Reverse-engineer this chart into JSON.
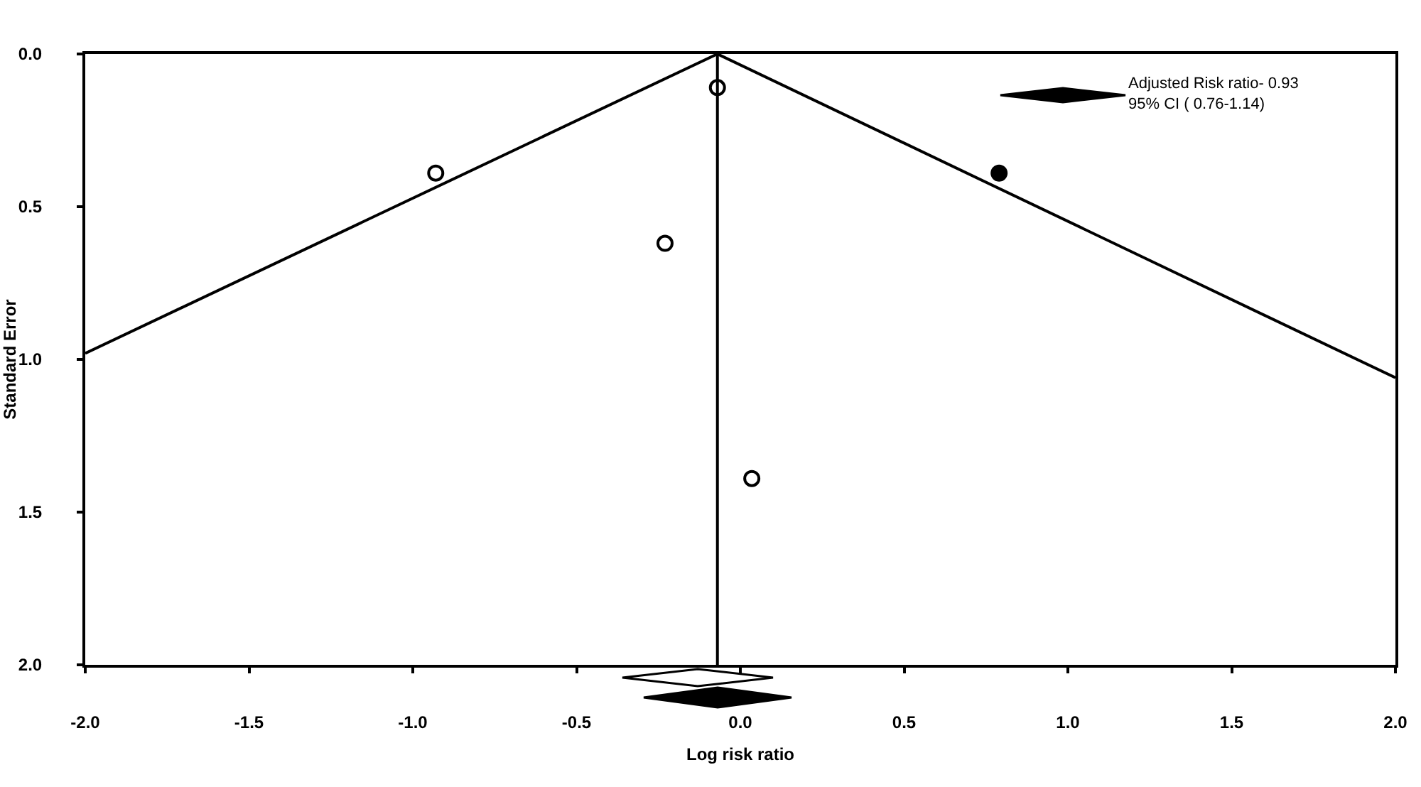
{
  "chart_data": {
    "type": "scatter",
    "xlabel": "Log risk ratio",
    "ylabel": "Standard Error",
    "xlim": [
      -2,
      2
    ],
    "xticks": [
      {
        "value": -2,
        "label": "-2.0"
      },
      {
        "value": -1.5,
        "label": "-1.5"
      },
      {
        "value": -1,
        "label": "-1.0"
      },
      {
        "value": -0.5,
        "label": "-0.5"
      },
      {
        "value": 0,
        "label": "0.0"
      },
      {
        "value": 0.5,
        "label": "0.5"
      },
      {
        "value": 1,
        "label": "1.0"
      },
      {
        "value": 1.5,
        "label": "1.5"
      },
      {
        "value": 2,
        "label": "2.0"
      }
    ],
    "ylim": [
      2,
      0
    ],
    "yticks": [
      {
        "value": 0,
        "label": "0.0"
      },
      {
        "value": 0.5,
        "label": "0.5"
      },
      {
        "value": 1,
        "label": "1.0"
      },
      {
        "value": 1.5,
        "label": "1.5"
      },
      {
        "value": 2,
        "label": "2.0"
      }
    ],
    "grid": false,
    "marker": "circle",
    "series": [
      {
        "type": "line",
        "color": "#000000",
        "x": [
          -2,
          -0.07,
          2
        ],
        "values": [
          0.98,
          0,
          1.06
        ],
        "marker": "none"
      },
      {
        "color": "#ffffff",
        "x": [
          -0.93,
          -0.07,
          -0.23,
          0.035
        ],
        "values": [
          0.39,
          0.11,
          0.62,
          1.39
        ]
      },
      {
        "color": "#000000",
        "x": [
          0.79
        ],
        "values": [
          0.39
        ]
      }
    ],
    "ref_lines": [
      {
        "axis": "x",
        "value": -0.07,
        "color": "#000000"
      }
    ],
    "annotations": [
      "Adjusted Risk ratio- 0.93\n95% CI ( 0.76-1.14)"
    ]
  }
}
